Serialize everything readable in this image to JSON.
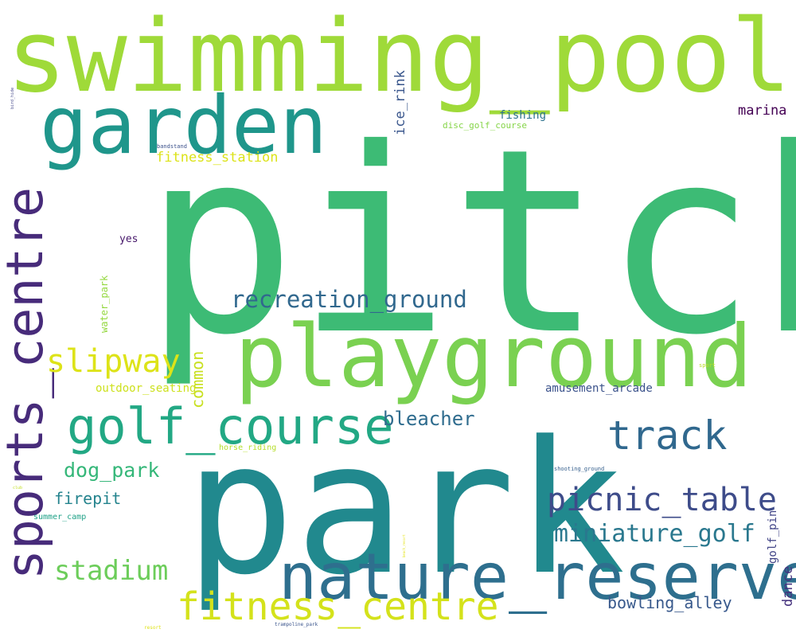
{
  "words": [
    {
      "text": "pitch",
      "color": "#3dbb75"
    },
    {
      "text": "park",
      "color": "#21898e"
    },
    {
      "text": "swimming_pool",
      "color": "#9fda39"
    },
    {
      "text": "playground",
      "color": "#7ad151"
    },
    {
      "text": "garden",
      "color": "#1f968b"
    },
    {
      "text": "nature_reserve",
      "color": "#2e6f8e"
    },
    {
      "text": "sports_centre",
      "color": "#472b7a"
    },
    {
      "text": "golf_course",
      "color": "#22a884"
    },
    {
      "text": "fitness_centre",
      "color": "#d4e21b"
    },
    {
      "text": "track",
      "color": "#30688e"
    },
    {
      "text": "picnic_table",
      "color": "#3e4c8a"
    },
    {
      "text": "recreation_ground",
      "color": "#31688e"
    },
    {
      "text": "slipway",
      "color": "#dde318"
    },
    {
      "text": "stadium",
      "color": "#6ccd5a"
    },
    {
      "text": "miniature_golf",
      "color": "#2a788e"
    },
    {
      "text": "dog_park",
      "color": "#35b779"
    },
    {
      "text": "bleacher",
      "color": "#2f6c8e"
    },
    {
      "text": "firepit",
      "color": "#25848e"
    },
    {
      "text": "bowling_alley",
      "color": "#38598c"
    },
    {
      "text": "fitness_station",
      "color": "#dce319"
    },
    {
      "text": "marina",
      "color": "#440154"
    },
    {
      "text": "ice_rink",
      "color": "#39568c"
    },
    {
      "text": "common",
      "color": "#c8e020"
    },
    {
      "text": "amusement_arcade",
      "color": "#3b528b"
    },
    {
      "text": "outdoor_seating",
      "color": "#cde11d"
    },
    {
      "text": "fishing",
      "color": "#2c738e"
    },
    {
      "text": "golf_pin",
      "color": "#414487"
    },
    {
      "text": "dance",
      "color": "#46327e"
    },
    {
      "text": "yes",
      "color": "#481a6c"
    },
    {
      "text": "water_park",
      "color": "#95d840"
    },
    {
      "text": "disc_golf_course",
      "color": "#86d549"
    },
    {
      "text": "summer_camp",
      "color": "#1fa187"
    },
    {
      "text": "horse_riding",
      "color": "#b5de2b"
    },
    {
      "text": "bandstand",
      "color": "#3b518b"
    },
    {
      "text": "shooting_ground",
      "color": "#355f8d"
    },
    {
      "text": "sport",
      "color": "#b8de29"
    },
    {
      "text": "trampoline_park",
      "color": "#3a548c"
    },
    {
      "text": "resort",
      "color": "#dfe318"
    },
    {
      "text": "club",
      "color": "#c2df23"
    },
    {
      "text": "bird_hide",
      "color": "#404588"
    },
    {
      "text": "beach_resort",
      "color": "#e5e419"
    }
  ]
}
